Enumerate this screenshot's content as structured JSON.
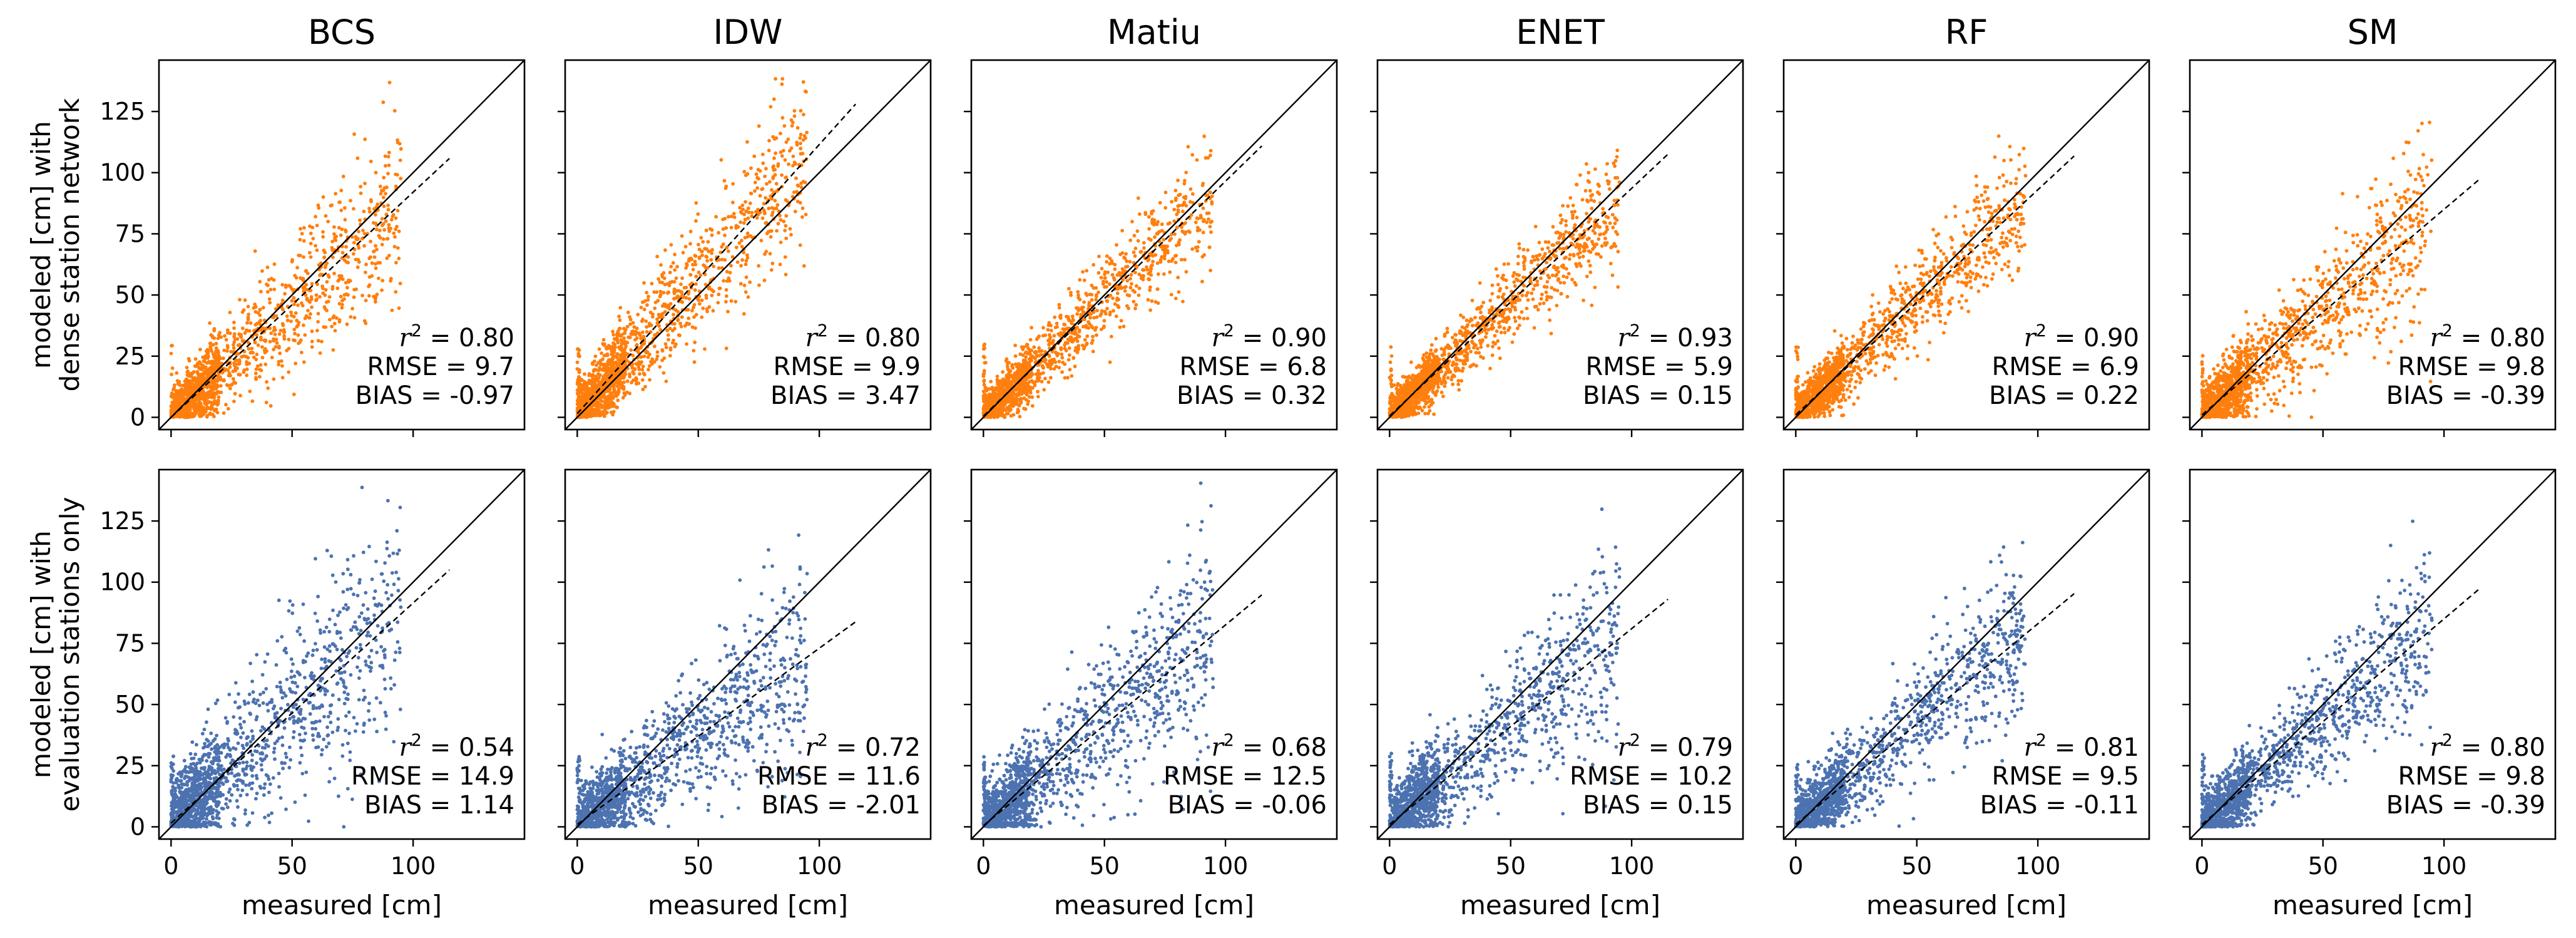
{
  "colors": {
    "dense": "#ff7f0e",
    "evaluation": "#4c72b0",
    "one_to_one": "#000000",
    "regression": "#000000"
  },
  "chart_data": {
    "type": "scatter",
    "grid": false,
    "xlim": [
      -5,
      146
    ],
    "ylim": [
      -5,
      146
    ],
    "xticks": [
      0,
      50,
      100
    ],
    "yticks": [
      0,
      25,
      50,
      75,
      100,
      125
    ],
    "columns": [
      "BCS",
      "IDW",
      "Matiu",
      "ENET",
      "RF",
      "SM"
    ],
    "xlabel": "measured [cm]",
    "row_labels": [
      [
        "modeled [cm] with",
        "dense station network"
      ],
      [
        "modeled [cm] with",
        "evaluation stations only"
      ]
    ],
    "rows": [
      {
        "color_key": "dense",
        "panels": [
          {
            "model": "BCS",
            "r2": "0.80",
            "rmse": "9.7",
            "bias": "-0.97",
            "fit_slope": 0.92,
            "fit_intercept": 0.0,
            "fit_x_end": 115,
            "spread": 11,
            "seed": 11
          },
          {
            "model": "IDW",
            "r2": "0.80",
            "rmse": "9.9",
            "bias": "3.47",
            "fit_slope": 1.1,
            "fit_intercept": 1.5,
            "fit_x_end": 115,
            "spread": 11,
            "seed": 12
          },
          {
            "model": "Matiu",
            "r2": "0.90",
            "rmse": "6.8",
            "bias": "0.32",
            "fit_slope": 0.96,
            "fit_intercept": 0.5,
            "fit_x_end": 115,
            "spread": 8,
            "seed": 13
          },
          {
            "model": "ENET",
            "r2": "0.93",
            "rmse": "5.9",
            "bias": "0.15",
            "fit_slope": 0.93,
            "fit_intercept": 0.6,
            "fit_x_end": 115,
            "spread": 7,
            "seed": 14
          },
          {
            "model": "RF",
            "r2": "0.90",
            "rmse": "6.9",
            "bias": "0.22",
            "fit_slope": 0.92,
            "fit_intercept": 1.0,
            "fit_x_end": 115,
            "spread": 8,
            "seed": 15
          },
          {
            "model": "SM",
            "r2": "0.80",
            "rmse": "9.8",
            "bias": "-0.39",
            "fit_slope": 0.84,
            "fit_intercept": 1.0,
            "fit_x_end": 115,
            "spread": 11,
            "seed": 16
          }
        ]
      },
      {
        "color_key": "evaluation",
        "panels": [
          {
            "model": "BCS",
            "r2": "0.54",
            "rmse": "14.9",
            "bias": "1.14",
            "fit_slope": 0.9,
            "fit_intercept": 1.5,
            "fit_x_end": 115,
            "spread": 16,
            "seed": 21
          },
          {
            "model": "IDW",
            "r2": "0.72",
            "rmse": "11.6",
            "bias": "-2.01",
            "fit_slope": 0.72,
            "fit_intercept": 1.0,
            "fit_x_end": 115,
            "spread": 13,
            "seed": 22
          },
          {
            "model": "Matiu",
            "r2": "0.68",
            "rmse": "12.5",
            "bias": "-0.06",
            "fit_slope": 0.82,
            "fit_intercept": 0.5,
            "fit_x_end": 115,
            "spread": 14,
            "seed": 23
          },
          {
            "model": "ENET",
            "r2": "0.79",
            "rmse": "10.2",
            "bias": "0.15",
            "fit_slope": 0.8,
            "fit_intercept": 1.0,
            "fit_x_end": 115,
            "spread": 12,
            "seed": 24
          },
          {
            "model": "RF",
            "r2": "0.81",
            "rmse": "9.5",
            "bias": "-0.11",
            "fit_slope": 0.82,
            "fit_intercept": 1.0,
            "fit_x_end": 115,
            "spread": 11,
            "seed": 25
          },
          {
            "model": "SM",
            "r2": "0.80",
            "rmse": "9.8",
            "bias": "-0.39",
            "fit_slope": 0.84,
            "fit_intercept": 1.0,
            "fit_x_end": 115,
            "spread": 11,
            "seed": 26
          }
        ]
      }
    ]
  }
}
